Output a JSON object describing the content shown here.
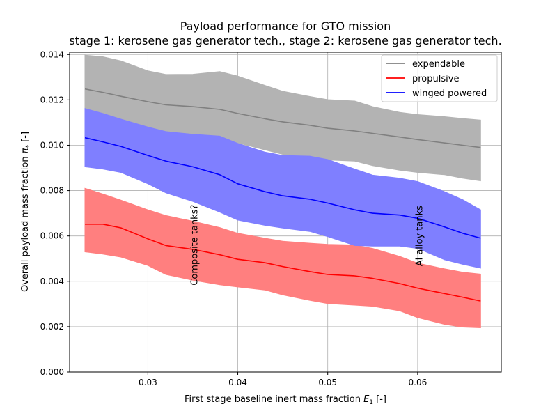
{
  "chart_data": {
    "type": "area",
    "title_line1": "Payload performance for GTO mission",
    "title_line2": "stage 1: kerosene gas generator tech., stage 2: kerosene gas generator tech.",
    "xlabel_main": "First stage baseline inert mass fraction ",
    "xlabel_var": "E",
    "xlabel_sub": "1",
    "xlabel_unit": " [-]",
    "ylabel_main": "Overall payload mass fraction ",
    "ylabel_var": "π",
    "ylabel_sub": "*",
    "ylabel_unit": " [-]",
    "xlim": [
      0.0213,
      0.0693
    ],
    "ylim": [
      0.0,
      0.0141
    ],
    "grid": true,
    "legend_position": "top-right",
    "x_ticks": [
      0.03,
      0.04,
      0.05,
      0.06
    ],
    "x_tick_labels": [
      "0.03",
      "0.04",
      "0.05",
      "0.06"
    ],
    "y_ticks": [
      0.0,
      0.002,
      0.004,
      0.006,
      0.008,
      0.01,
      0.012,
      0.014
    ],
    "y_tick_labels": [
      "0.000",
      "0.002",
      "0.004",
      "0.006",
      "0.008",
      "0.010",
      "0.012",
      "0.014"
    ],
    "x": [
      0.023,
      0.025,
      0.027,
      0.03,
      0.032,
      0.035,
      0.038,
      0.04,
      0.043,
      0.045,
      0.048,
      0.05,
      0.053,
      0.055,
      0.058,
      0.06,
      0.063,
      0.065,
      0.067
    ],
    "series": [
      {
        "name": "expendable",
        "color": "#808080",
        "band_color": "#b3b3b3",
        "mean": [
          0.01248,
          0.01233,
          0.01216,
          0.01192,
          0.01178,
          0.0117,
          0.01158,
          0.0114,
          0.01117,
          0.01103,
          0.01088,
          0.01075,
          0.01063,
          0.01052,
          0.01036,
          0.01025,
          0.0101,
          0.01,
          0.0099
        ],
        "upper": [
          0.01397,
          0.0139,
          0.01372,
          0.01328,
          0.01312,
          0.01313,
          0.01325,
          0.01305,
          0.01264,
          0.01238,
          0.01215,
          0.01201,
          0.01195,
          0.0117,
          0.01145,
          0.01135,
          0.01126,
          0.01118,
          0.01111
        ],
        "lower": [
          0.0109,
          0.0108,
          0.01068,
          0.01055,
          0.0105,
          0.01042,
          0.01025,
          0.0101,
          0.0098,
          0.0096,
          0.00945,
          0.00935,
          0.0093,
          0.0091,
          0.0089,
          0.0088,
          0.0087,
          0.00855,
          0.00843
        ]
      },
      {
        "name": "propulsive",
        "color": "#ff0000",
        "band_color": "#ff7f7f",
        "mean": [
          0.00652,
          0.00652,
          0.00636,
          0.00587,
          0.00558,
          0.00541,
          0.00517,
          0.00497,
          0.00482,
          0.00465,
          0.00443,
          0.0043,
          0.00424,
          0.00413,
          0.0039,
          0.0037,
          0.00346,
          0.0033,
          0.00313
        ],
        "upper": [
          0.0081,
          0.00785,
          0.00758,
          0.00715,
          0.0069,
          0.00665,
          0.00637,
          0.00612,
          0.0059,
          0.00577,
          0.00568,
          0.00563,
          0.0056,
          0.00545,
          0.0051,
          0.0048,
          0.00455,
          0.0044,
          0.00432
        ],
        "lower": [
          0.0053,
          0.0052,
          0.00507,
          0.0047,
          0.0043,
          0.00405,
          0.00385,
          0.00375,
          0.00362,
          0.0034,
          0.00316,
          0.00302,
          0.00295,
          0.0029,
          0.0027,
          0.0024,
          0.0021,
          0.00198,
          0.00195
        ]
      },
      {
        "name": "winged powered",
        "color": "#0000ff",
        "band_color": "#7f7fff",
        "mean": [
          0.01033,
          0.01015,
          0.00995,
          0.00955,
          0.0093,
          0.00905,
          0.0087,
          0.0083,
          0.00795,
          0.00777,
          0.00762,
          0.00745,
          0.00715,
          0.007,
          0.00692,
          0.00678,
          0.0064,
          0.00612,
          0.0059
        ],
        "upper": [
          0.01162,
          0.0114,
          0.01115,
          0.0108,
          0.0106,
          0.01048,
          0.0104,
          0.01008,
          0.0097,
          0.00955,
          0.00952,
          0.00937,
          0.00895,
          0.00868,
          0.00855,
          0.0084,
          0.00795,
          0.0076,
          0.00715
        ],
        "lower": [
          0.00905,
          0.00895,
          0.0088,
          0.0083,
          0.0079,
          0.00752,
          0.00705,
          0.0067,
          0.00647,
          0.00635,
          0.0062,
          0.00597,
          0.00558,
          0.00555,
          0.00555,
          0.00545,
          0.00495,
          0.00475,
          0.00458
        ]
      }
    ],
    "annotations": [
      {
        "text": "Composite tanks?",
        "x": 0.0355,
        "y": 0.0056
      },
      {
        "text": "Al alloy tanks",
        "x": 0.0605,
        "y": 0.006
      }
    ]
  }
}
